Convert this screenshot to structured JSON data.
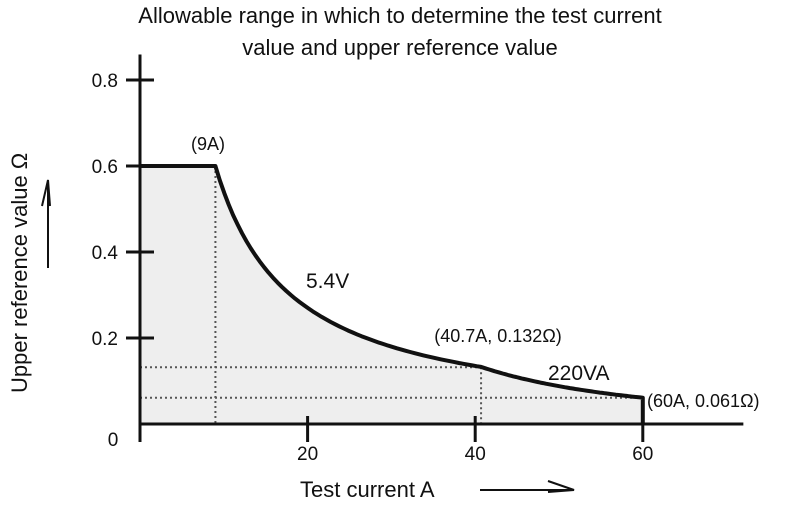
{
  "chart_data": {
    "type": "area",
    "title_lines": [
      "Allowable range in which to determine the test current",
      "value and upper reference value"
    ],
    "xlabel": "Test current A",
    "ylabel": "Upper reference value Ω",
    "xlim": [
      0,
      72
    ],
    "ylim": [
      0,
      0.85
    ],
    "x_ticks": [
      0,
      20,
      40,
      60
    ],
    "x_tick_labels": [
      "0",
      "20",
      "40",
      "60"
    ],
    "y_ticks": [
      0.2,
      0.4,
      0.6,
      0.8
    ],
    "y_tick_labels": [
      "0.2",
      "0.4",
      "0.6",
      "0.8"
    ],
    "grid": false,
    "boundary": {
      "flat": {
        "x": [
          0,
          9
        ],
        "y": 0.6
      },
      "voltage_limit": {
        "label": "5.4V",
        "x": [
          9,
          40.7
        ],
        "formula": "y = 5.4 / x"
      },
      "power_limit": {
        "label": "220VA",
        "x": [
          40.7,
          60
        ],
        "formula": "y = 220 / x^2"
      },
      "drop_at_x": 60
    },
    "annotations": {
      "point_9a": {
        "text": "(9A)",
        "x": 9,
        "y": 0.6
      },
      "point_40_7a": {
        "text": "(40.7A, 0.132Ω)",
        "x": 40.7,
        "y": 0.132
      },
      "point_60a": {
        "text": "(60A, 0.061Ω)",
        "x": 60,
        "y": 0.061
      }
    },
    "series_labels": {
      "voltage": "5.4V",
      "power": "220VA"
    },
    "colors": {
      "fill": "#eeeeee",
      "curve": "#111111",
      "axis": "#111111",
      "guide": "#555555"
    }
  }
}
